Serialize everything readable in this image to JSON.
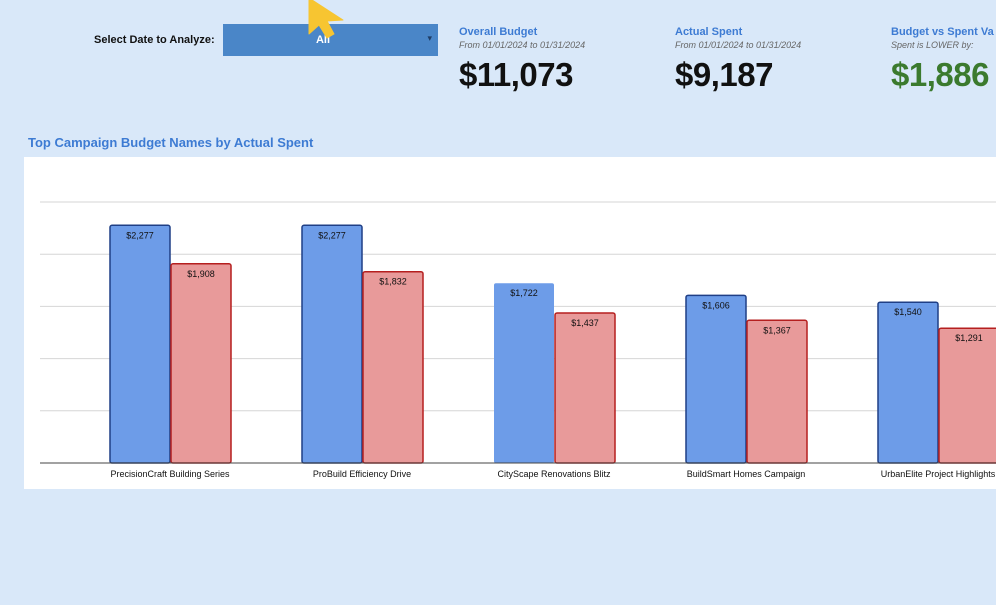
{
  "filter": {
    "label": "Select Date to Analyze:",
    "value": "All",
    "caret": "▾"
  },
  "kpis": [
    {
      "title": "Overall Budget",
      "subtitle": "From 01/01/2024 to 01/31/2024",
      "value": "$11,073",
      "color": "#111111"
    },
    {
      "title": "Actual Spent",
      "subtitle": "From 01/01/2024 to 01/31/2024",
      "value": "$9,187",
      "color": "#111111"
    },
    {
      "title": "Budget vs Spent Va",
      "subtitle": "Spent is LOWER by:",
      "value": "$1,886",
      "color": "#3b7a2e"
    }
  ],
  "colors": {
    "background": "#d9e8f9",
    "accent": "#3d7bd3",
    "budget_fill": "#6d9ce8",
    "budget_stroke": "#1f3f86",
    "spent_fill": "#e89a9a",
    "spent_stroke": "#b51f1f",
    "positive": "#3b7a2e"
  },
  "icons": {
    "cursor": "pointer-cursor-icon"
  },
  "chart_data": {
    "type": "bar",
    "title": "Top Campaign Budget Names by Actual Spent",
    "xlabel": "",
    "ylabel": "",
    "categories": [
      "PrecisionCraft Building Series",
      "ProBuild Efficiency Drive",
      "CityScape Renovations Blitz",
      "BuildSmart Homes Campaign",
      "UrbanElite Project Highlights"
    ],
    "series": [
      {
        "values": [
          2277,
          2277,
          1722,
          1606,
          1540
        ],
        "labels": [
          "$2,277",
          "$2,277",
          "$1,722",
          "$1,606",
          "$1,540"
        ]
      },
      {
        "values": [
          1908,
          1832,
          1437,
          1367,
          1291
        ],
        "labels": [
          "$1,908",
          "$1,832",
          "$1,437",
          "$1,367",
          "$1,291"
        ]
      }
    ],
    "ylim": [
      0,
      2500
    ],
    "grid": true,
    "legend": "none"
  }
}
